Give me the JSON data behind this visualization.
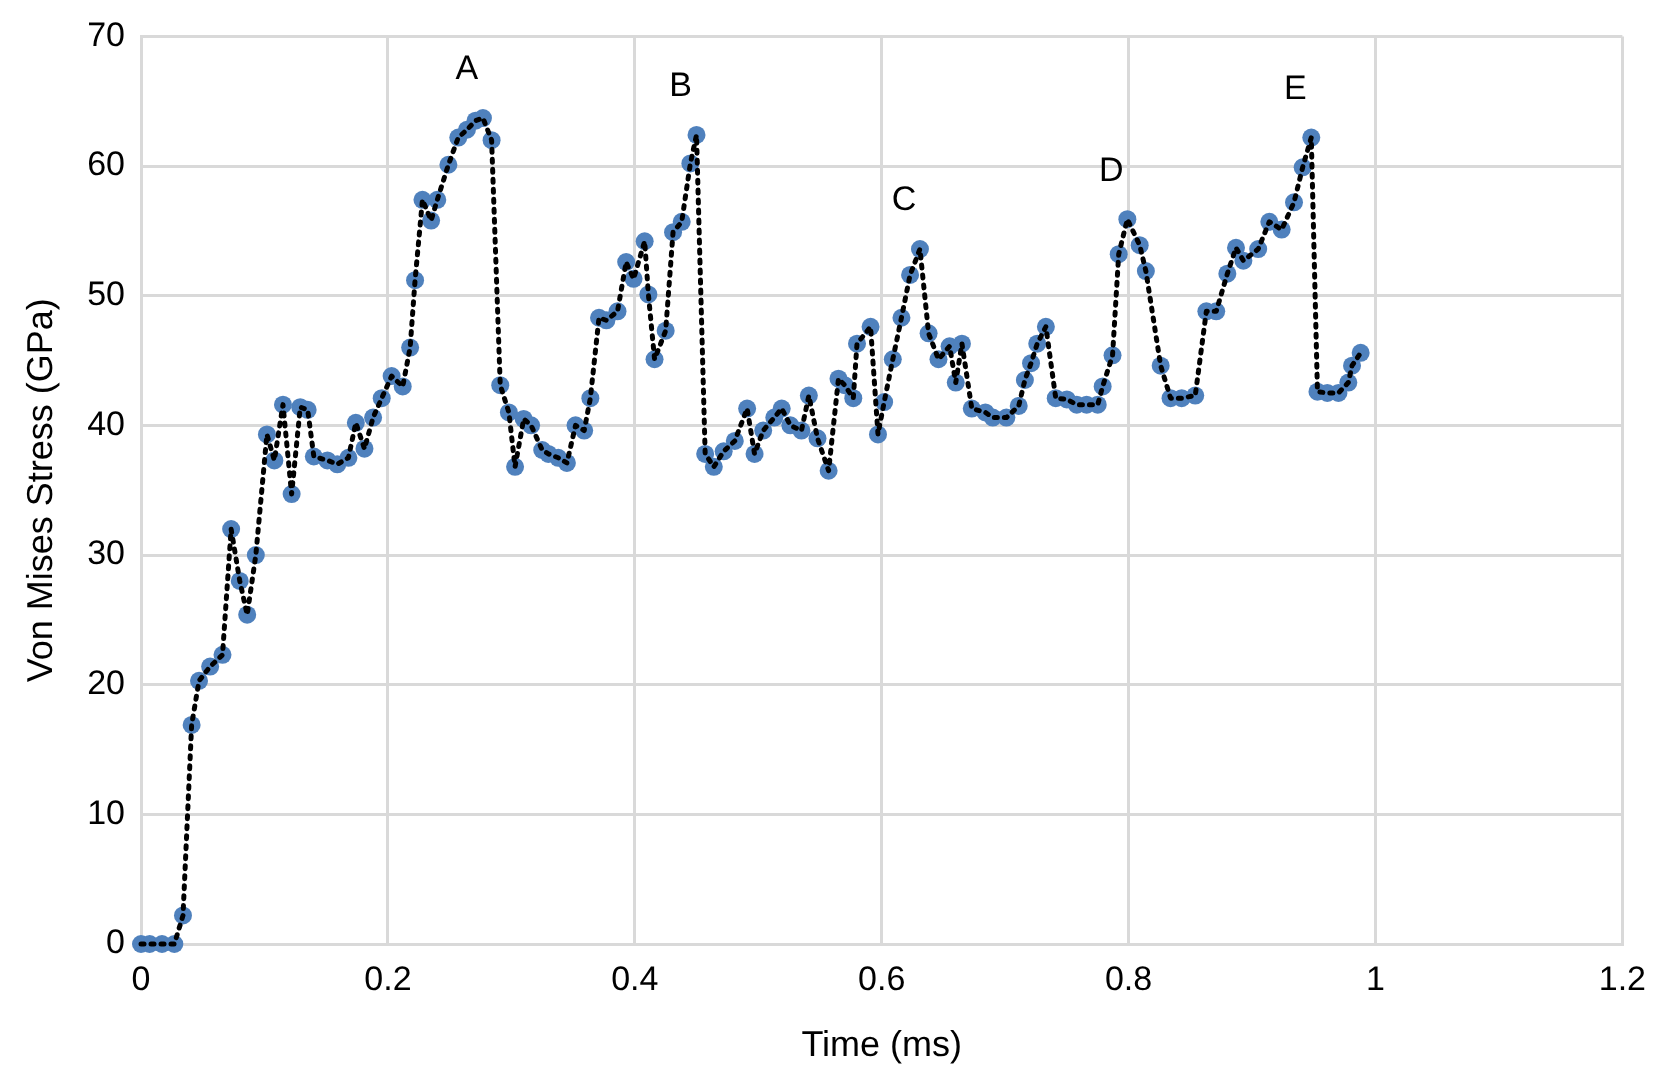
{
  "chart_data": {
    "type": "scatter",
    "xlabel": "Time (ms)",
    "ylabel": "Von Mises Stress (GPa)",
    "xlim": [
      0,
      1.2
    ],
    "xticks": [
      0,
      0.2,
      0.4,
      0.6,
      0.8,
      1,
      1.2
    ],
    "ylim": [
      0,
      70
    ],
    "yticks": [
      0,
      10,
      20,
      30,
      40,
      50,
      60,
      70
    ],
    "grid": true,
    "marker": "circle",
    "x": [
      0,
      0.007,
      0.017,
      0.027,
      0.034,
      0.041,
      0.047,
      0.056,
      0.066,
      0.073,
      0.08,
      0.086,
      0.093,
      0.102,
      0.108,
      0.115,
      0.122,
      0.129,
      0.135,
      0.14,
      0.151,
      0.159,
      0.168,
      0.174,
      0.181,
      0.188,
      0.195,
      0.203,
      0.212,
      0.218,
      0.222,
      0.228,
      0.235,
      0.24,
      0.249,
      0.257,
      0.264,
      0.271,
      0.277,
      0.284,
      0.291,
      0.298,
      0.303,
      0.31,
      0.316,
      0.325,
      0.33,
      0.338,
      0.345,
      0.352,
      0.359,
      0.364,
      0.371,
      0.377,
      0.386,
      0.393,
      0.399,
      0.408,
      0.411,
      0.416,
      0.425,
      0.431,
      0.438,
      0.445,
      0.45,
      0.457,
      0.464,
      0.472,
      0.481,
      0.491,
      0.497,
      0.504,
      0.513,
      0.519,
      0.526,
      0.535,
      0.541,
      0.548,
      0.557,
      0.565,
      0.57,
      0.577,
      0.58,
      0.591,
      0.597,
      0.602,
      0.609,
      0.616,
      0.623,
      0.631,
      0.638,
      0.646,
      0.655,
      0.66,
      0.665,
      0.673,
      0.684,
      0.69,
      0.701,
      0.711,
      0.716,
      0.721,
      0.726,
      0.733,
      0.741,
      0.75,
      0.758,
      0.766,
      0.775,
      0.779,
      0.787,
      0.792,
      0.799,
      0.809,
      0.814,
      0.826,
      0.834,
      0.843,
      0.854,
      0.863,
      0.871,
      0.88,
      0.887,
      0.893,
      0.905,
      0.914,
      0.924,
      0.934,
      0.941,
      0.948,
      0.953,
      0.961,
      0.97,
      0.978,
      0.981,
      0.988
    ],
    "series": [
      {
        "color": "#4f81bd",
        "values": [
          0,
          0,
          0,
          0,
          2.2,
          16.9,
          20.3,
          21.4,
          22.3,
          32,
          28,
          25.4,
          30,
          39.3,
          37.3,
          41.6,
          34.7,
          41.4,
          41.2,
          37.6,
          37.3,
          37,
          37.5,
          40.2,
          38.2,
          40.6,
          42.1,
          43.8,
          43,
          46,
          51.2,
          57.4,
          55.8,
          57.4,
          60.1,
          62.2,
          62.8,
          63.5,
          63.7,
          62,
          43.1,
          41,
          36.8,
          40.5,
          40,
          38.1,
          37.8,
          37.5,
          37.1,
          40,
          39.6,
          42.1,
          48.3,
          48.1,
          48.8,
          52.6,
          51.3,
          54.2,
          50.1,
          45.1,
          47.3,
          54.9,
          55.7,
          60.2,
          62.4,
          37.8,
          36.8,
          38,
          38.8,
          41.3,
          37.8,
          39.6,
          40.6,
          41.3,
          40,
          39.6,
          42.3,
          39,
          36.5,
          43.6,
          43.1,
          42.1,
          46.3,
          47.6,
          39.3,
          41.8,
          45.1,
          48.3,
          51.6,
          53.6,
          47.1,
          45.1,
          46.1,
          43.3,
          46.3,
          41.3,
          41,
          40.6,
          40.6,
          41.5,
          43.5,
          44.8,
          46.3,
          47.6,
          42.1,
          42,
          41.6,
          41.6,
          41.6,
          43,
          45.4,
          53.2,
          55.9,
          53.9,
          51.9,
          44.6,
          42.1,
          42.1,
          42.3,
          48.8,
          48.8,
          51.7,
          53.7,
          52.7,
          53.6,
          55.7,
          55.1,
          57.2,
          59.9,
          62.2,
          42.6,
          42.5,
          42.5,
          43.3,
          44.6,
          45.6
        ]
      },
      {
        "type": "line",
        "color": "#000000",
        "marker": "none",
        "line_style": "dotted",
        "values": [
          0,
          0,
          0,
          0,
          2.2,
          16.9,
          20.3,
          21.4,
          22.3,
          32,
          28,
          25.4,
          30,
          39.3,
          37.3,
          41.6,
          34.7,
          41.4,
          41.2,
          37.6,
          37.3,
          37,
          37.5,
          40.2,
          38.2,
          40.6,
          42.1,
          43.8,
          43,
          46,
          51.2,
          57.4,
          55.8,
          57.4,
          60.1,
          62.2,
          62.8,
          63.5,
          63.7,
          62,
          43.1,
          41,
          36.8,
          40.5,
          40,
          38.1,
          37.8,
          37.5,
          37.1,
          40,
          39.6,
          42.1,
          48.3,
          48.1,
          48.8,
          52.6,
          51.3,
          54.2,
          50.1,
          45.1,
          47.3,
          54.9,
          55.7,
          60.2,
          62.4,
          37.8,
          36.8,
          38,
          38.8,
          41.3,
          37.8,
          39.6,
          40.6,
          41.3,
          40,
          39.6,
          42.3,
          39,
          36.5,
          43.6,
          43.1,
          42.1,
          46.3,
          47.6,
          39.3,
          41.8,
          45.1,
          48.3,
          51.6,
          53.6,
          47.1,
          45.1,
          46.1,
          43.3,
          46.3,
          41.3,
          41,
          40.6,
          40.6,
          41.5,
          43.5,
          44.8,
          46.3,
          47.6,
          42.1,
          42,
          41.6,
          41.6,
          41.6,
          43,
          45.4,
          53.2,
          55.9,
          53.9,
          51.9,
          44.6,
          42.1,
          42.1,
          42.3,
          48.8,
          48.8,
          51.7,
          53.7,
          52.7,
          53.6,
          55.7,
          55.1,
          57.2,
          59.9,
          62.2,
          42.6,
          42.5,
          42.5,
          43.3,
          44.6,
          45.6
        ]
      }
    ],
    "annotations": [
      {
        "text": "A",
        "x": 0.277,
        "y": 63.7
      },
      {
        "text": "B",
        "x": 0.45,
        "y": 62.4
      },
      {
        "text": "C",
        "x": 0.631,
        "y": 53.6
      },
      {
        "text": "D",
        "x": 0.799,
        "y": 55.9
      },
      {
        "text": "E",
        "x": 0.948,
        "y": 62.2
      }
    ]
  }
}
